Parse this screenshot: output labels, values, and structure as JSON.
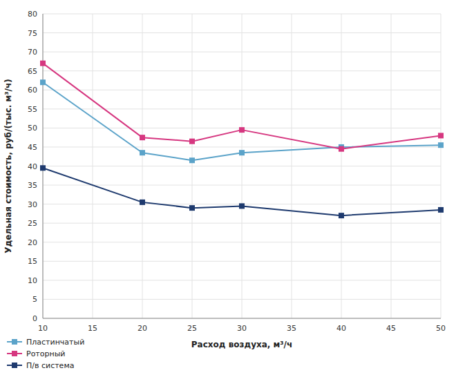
{
  "chart_data": {
    "type": "line",
    "xlabel": "Расход воздуха, м³/ч",
    "ylabel": "Удельная стоимость, руб/(тыс. м³/ч)",
    "x": [
      10,
      20,
      25,
      30,
      40,
      50
    ],
    "series": [
      {
        "name": "Пластинчатый",
        "color": "#5BA3C9",
        "marker": "square",
        "values": [
          62,
          43.5,
          41.5,
          43.5,
          45,
          45.5
        ]
      },
      {
        "name": "Роторный",
        "color": "#D63780",
        "marker": "square",
        "values": [
          67,
          47.5,
          46.5,
          49.5,
          44.5,
          48
        ]
      },
      {
        "name": "П/в система",
        "color": "#1E3A6E",
        "marker": "square",
        "values": [
          39.5,
          30.5,
          29.0,
          29.5,
          27,
          28.5
        ]
      }
    ],
    "xlim": [
      10,
      50
    ],
    "ylim": [
      0,
      80
    ],
    "xticks": [
      10,
      15,
      20,
      25,
      30,
      35,
      40,
      45,
      50
    ],
    "yticks": [
      0,
      5,
      10,
      15,
      20,
      25,
      30,
      35,
      40,
      45,
      50,
      55,
      60,
      65,
      70,
      75,
      80
    ],
    "grid": true,
    "legend": "lower left"
  }
}
